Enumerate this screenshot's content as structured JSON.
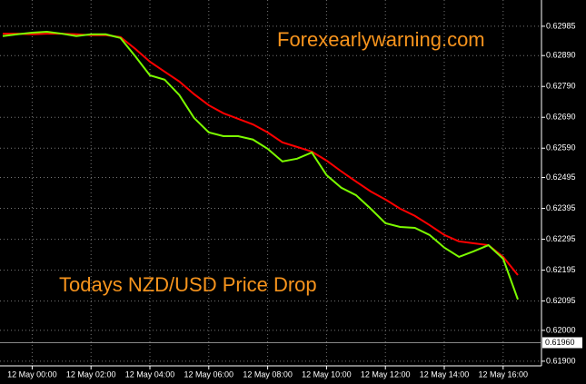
{
  "chart_data": {
    "type": "line",
    "categories": [
      null,
      null,
      "12 May 00:00",
      null,
      null,
      null,
      "12 May 02:00",
      null,
      null,
      null,
      "12 May 04:00",
      null,
      null,
      null,
      "12 May 06:00",
      null,
      null,
      null,
      "12 May 08:00",
      null,
      null,
      null,
      "12 May 10:00",
      null,
      null,
      null,
      "12 May 12:00",
      null,
      null,
      null,
      "12 May 14:00",
      null,
      null,
      null,
      "12 May 16:00",
      null
    ],
    "series": [
      {
        "color": "#ff0000",
        "values": [
          0.62961,
          0.62961,
          0.62959,
          0.62961,
          0.62961,
          0.62959,
          0.62956,
          0.62956,
          0.6295,
          0.62912,
          0.6287,
          0.62838,
          0.62806,
          0.62765,
          0.62729,
          0.62703,
          0.62685,
          0.62667,
          0.62641,
          0.62609,
          0.62594,
          0.62579,
          0.6255,
          0.62515,
          0.62482,
          0.6245,
          0.62424,
          0.62394,
          0.62371,
          0.62341,
          0.62309,
          0.62288,
          0.62282,
          0.62276,
          0.62238,
          0.62179
        ]
      },
      {
        "color": "#7cfc00",
        "values": [
          0.62953,
          0.62959,
          0.62964,
          0.62967,
          0.62961,
          0.62953,
          0.62959,
          0.62959,
          0.62947,
          0.62888,
          0.62826,
          0.62812,
          0.62762,
          0.62688,
          0.62641,
          0.62629,
          0.62629,
          0.62618,
          0.62588,
          0.62547,
          0.62556,
          0.62576,
          0.62503,
          0.62462,
          0.62438,
          0.62394,
          0.62347,
          0.62335,
          0.62332,
          0.62309,
          0.62268,
          0.62238,
          0.62256,
          0.62276,
          0.62232,
          0.621
        ]
      }
    ],
    "ylim": [
      0.61885,
      0.6307
    ],
    "yticks": [
      {
        "value": 0.619,
        "label": "0.61900"
      },
      {
        "value": 0.62,
        "label": "0.62000"
      },
      {
        "value": 0.62095,
        "label": "0.62095"
      },
      {
        "value": 0.62195,
        "label": "0.62195"
      },
      {
        "value": 0.62295,
        "label": "0.62295"
      },
      {
        "value": 0.62395,
        "label": "0.62395"
      },
      {
        "value": 0.62495,
        "label": "0.62495"
      },
      {
        "value": 0.6259,
        "label": "0.62590"
      },
      {
        "value": 0.6269,
        "label": "0.62690"
      },
      {
        "value": 0.6279,
        "label": "0.62790"
      },
      {
        "value": 0.6289,
        "label": "0.62890"
      },
      {
        "value": 0.62985,
        "label": "0.62985"
      }
    ],
    "last_price": {
      "value": 0.6196,
      "label": "0.61960"
    },
    "grid": true,
    "annotation_color": "#f7941d",
    "annotations": [
      "Forexearlywarning.com",
      "Todays NZD/USD Price Drop"
    ]
  }
}
